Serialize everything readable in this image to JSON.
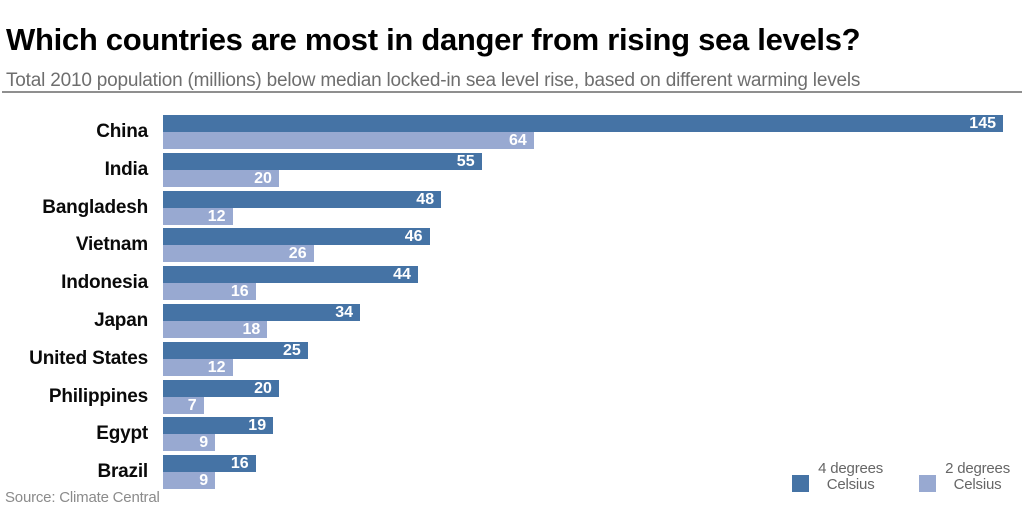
{
  "header": {
    "title": "Which countries are most in danger from rising sea levels?",
    "subtitle": "Total 2010 population (millions) below median locked-in sea level rise, based on different warming levels"
  },
  "source": "Source: Climate Central",
  "legend": {
    "items": [
      {
        "line1": "4 degrees",
        "line2": "Celsius",
        "color": "#4573a5"
      },
      {
        "line1": "2 degrees",
        "line2": "Celsius",
        "color": "#98a9d1"
      }
    ],
    "position": "bottom-right"
  },
  "colors": {
    "series_dark": "#4573a5",
    "series_light": "#98a9d1",
    "title_text": "#000000",
    "subtitle_text": "#6e6e6e",
    "divider": "#8f8f8f",
    "value_label_text": "#ffffff",
    "source_text": "#8b8b8b",
    "background": "#ffffff"
  },
  "chart_data": {
    "type": "bar",
    "orientation": "horizontal",
    "title": "Which countries are most in danger from rising sea levels?",
    "subtitle": "Total 2010 population (millions) below median locked-in sea level rise, based on different warming levels",
    "xlabel": "",
    "ylabel": "",
    "xlim": [
      0,
      145
    ],
    "grid": false,
    "value_labels": "inside-end",
    "legend_position": "bottom-right",
    "categories": [
      "China",
      "India",
      "Bangladesh",
      "Vietnam",
      "Indonesia",
      "Japan",
      "United States",
      "Philippines",
      "Egypt",
      "Brazil"
    ],
    "series": [
      {
        "name": "4 degrees Celsius",
        "color": "#4573a5",
        "values": [
          145,
          55,
          48,
          46,
          44,
          34,
          25,
          20,
          19,
          16
        ]
      },
      {
        "name": "2 degrees Celsius",
        "color": "#98a9d1",
        "values": [
          64,
          20,
          12,
          26,
          16,
          18,
          12,
          7,
          9,
          9
        ]
      }
    ]
  }
}
